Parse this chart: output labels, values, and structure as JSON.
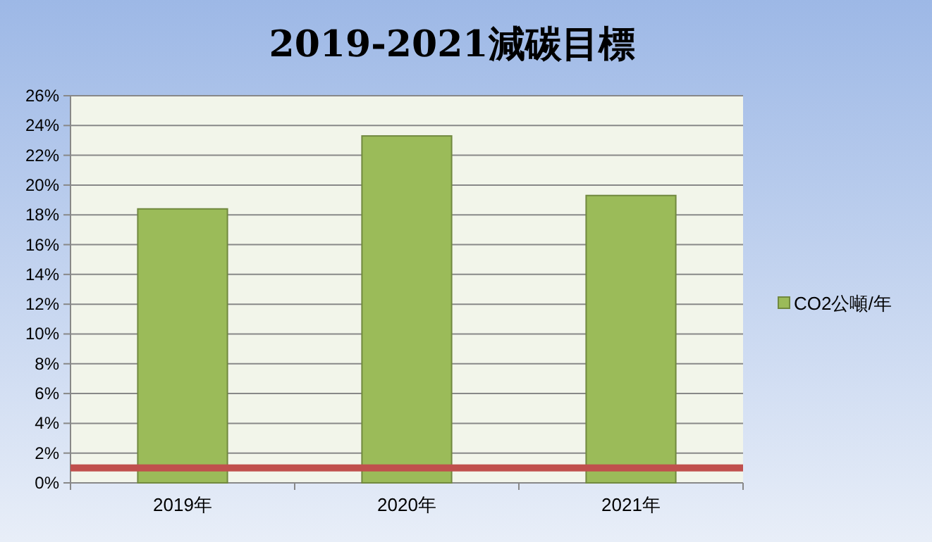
{
  "chart_data": {
    "type": "bar",
    "title": "2019-2021減碳目標",
    "categories": [
      "2019年",
      "2020年",
      "2021年"
    ],
    "series": [
      {
        "name": "CO2公噸/年",
        "color": "#9bbb59",
        "values": [
          18.4,
          23.3,
          19.3
        ]
      }
    ],
    "ylim": [
      0,
      26
    ],
    "yticks": [
      {
        "value": 0,
        "label": "0%"
      },
      {
        "value": 2,
        "label": "2%"
      },
      {
        "value": 4,
        "label": "4%"
      },
      {
        "value": 6,
        "label": "6%"
      },
      {
        "value": 8,
        "label": "8%"
      },
      {
        "value": 10,
        "label": "10%"
      },
      {
        "value": 12,
        "label": "12%"
      },
      {
        "value": 14,
        "label": "14%"
      },
      {
        "value": 16,
        "label": "16%"
      },
      {
        "value": 18,
        "label": "18%"
      },
      {
        "value": 20,
        "label": "20%"
      },
      {
        "value": 22,
        "label": "22%"
      },
      {
        "value": 24,
        "label": "24%"
      },
      {
        "value": 26,
        "label": "26%"
      }
    ],
    "ref_lines": [
      {
        "axis": "y",
        "value": 1,
        "color": "#c0504d"
      }
    ],
    "grid": "y",
    "legend": "right"
  }
}
